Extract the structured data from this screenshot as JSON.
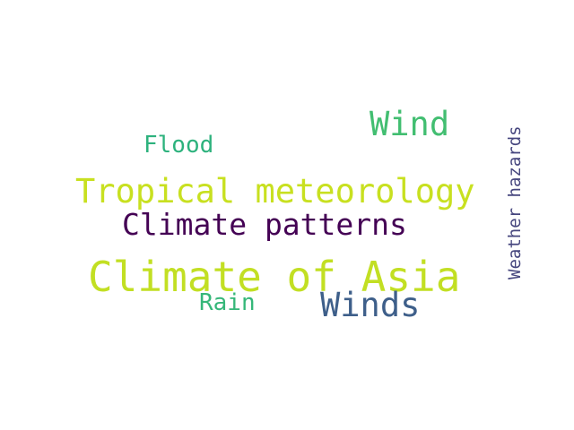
{
  "words": [
    {
      "text": "Climate of Asia",
      "color": "#c2df23"
    },
    {
      "text": "Tropical meteorology",
      "color": "#c8e020"
    },
    {
      "text": "Climate patterns",
      "color": "#440154"
    },
    {
      "text": "Winds",
      "color": "#3e5f8a"
    },
    {
      "text": "Wind",
      "color": "#42be71"
    },
    {
      "text": "Flood",
      "color": "#2db27d"
    },
    {
      "text": "Rain",
      "color": "#35b779"
    },
    {
      "text": "Weather hazards",
      "color": "#46467e"
    }
  ]
}
